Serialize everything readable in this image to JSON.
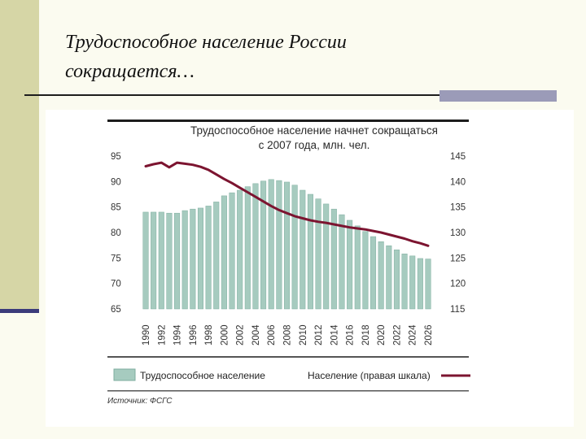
{
  "slide": {
    "title_lines": [
      "Трудоспособное население России",
      "сокращается…"
    ]
  },
  "colors": {
    "bar": "#a6cbbf",
    "bar_stroke": "#7fae9f",
    "line": "#7c1430",
    "left_band": "#d6d6a6",
    "accent": "#9b9bb8"
  },
  "chart_data": {
    "type": "bar",
    "title_lines": [
      "Трудоспособное население начнет сокращаться",
      "с 2007 года, млн. чел."
    ],
    "categories": [
      "1990",
      "1991",
      "1992",
      "1993",
      "1994",
      "1995",
      "1996",
      "1997",
      "1998",
      "1999",
      "2000",
      "2001",
      "2002",
      "2003",
      "2004",
      "2005",
      "2006",
      "2007",
      "2008",
      "2009",
      "2010",
      "2011",
      "2012",
      "2013",
      "2014",
      "2015",
      "2016",
      "2017",
      "2018",
      "2019",
      "2020",
      "2021",
      "2022",
      "2023",
      "2024",
      "2025",
      "2026"
    ],
    "x_tick_labels": [
      "1990",
      "1992",
      "1994",
      "1996",
      "1998",
      "2000",
      "2002",
      "2004",
      "2006",
      "2008",
      "2010",
      "2012",
      "2014",
      "2016",
      "2018",
      "2020",
      "2022",
      "2024",
      "2026"
    ],
    "series": [
      {
        "name": "Трудоспособное население",
        "kind": "bar",
        "axis": "left",
        "values": [
          84.0,
          84.0,
          84.0,
          83.8,
          83.8,
          84.3,
          84.6,
          84.8,
          85.2,
          86.0,
          87.2,
          87.8,
          88.3,
          89.0,
          89.6,
          90.1,
          90.4,
          90.2,
          89.9,
          89.3,
          88.3,
          87.5,
          86.6,
          85.6,
          84.6,
          83.5,
          82.4,
          81.3,
          80.2,
          79.2,
          78.2,
          77.4,
          76.6,
          75.8,
          75.4,
          74.9,
          74.8
        ]
      },
      {
        "name": "Население (правая шкала)",
        "kind": "line",
        "axis": "right",
        "values": [
          143.0,
          143.4,
          143.7,
          142.8,
          143.7,
          143.5,
          143.3,
          142.9,
          142.3,
          141.4,
          140.5,
          139.7,
          138.8,
          137.9,
          137.0,
          136.1,
          135.2,
          134.4,
          133.8,
          133.2,
          132.8,
          132.4,
          132.1,
          131.9,
          131.6,
          131.3,
          131.0,
          130.8,
          130.6,
          130.3,
          130.0,
          129.6,
          129.2,
          128.8,
          128.3,
          127.9,
          127.4
        ]
      }
    ],
    "left_axis": {
      "ylim": [
        65,
        95
      ],
      "ticks": [
        65,
        70,
        75,
        80,
        85,
        90,
        95
      ]
    },
    "right_axis": {
      "ylim": [
        115,
        145
      ],
      "ticks": [
        115,
        120,
        125,
        130,
        135,
        140,
        145
      ]
    },
    "grid": false,
    "legend": {
      "placement": "bottom",
      "bar_label": "Трудоспособное население",
      "line_label": "Население (правая шкала)"
    },
    "source": "Источник: ФСГС"
  }
}
